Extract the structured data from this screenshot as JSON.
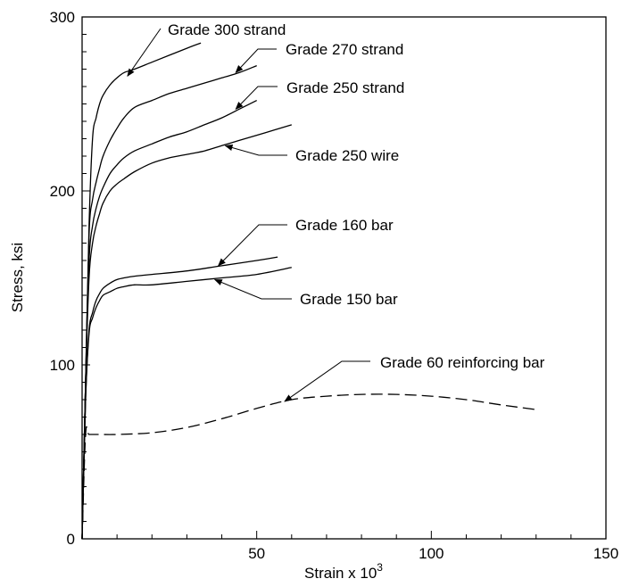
{
  "chart_data": {
    "type": "line",
    "xlabel": "Strain x 10",
    "xlabel_sup": "3",
    "ylabel": "Stress, ksi",
    "xlim": [
      0,
      150
    ],
    "ylim": [
      0,
      300
    ],
    "x_ticks": [
      50,
      100,
      150
    ],
    "y_ticks": [
      0,
      100,
      200,
      300
    ],
    "x_tick_labels": [
      "50",
      "100",
      "150"
    ],
    "y_tick_labels": [
      "0",
      "100",
      "200",
      "300"
    ],
    "grid": false,
    "series": [
      {
        "name": "Grade 300 strand",
        "style": "solid",
        "x": [
          0,
          1,
          2,
          3,
          4,
          5,
          6,
          8,
          10,
          12,
          15,
          20,
          25,
          30,
          34
        ],
        "y": [
          0,
          90,
          180,
          230,
          242,
          250,
          255,
          261,
          265,
          268,
          270,
          274,
          278,
          282,
          285
        ],
        "annotation_point": [
          13,
          266
        ]
      },
      {
        "name": "Grade 270 strand",
        "style": "solid",
        "x": [
          0,
          1,
          2,
          3,
          4,
          5,
          6,
          8,
          10,
          12,
          15,
          20,
          25,
          30,
          35,
          40,
          45,
          50
        ],
        "y": [
          0,
          90,
          175,
          195,
          205,
          213,
          220,
          229,
          236,
          242,
          248,
          252,
          256,
          259,
          262,
          265,
          268,
          272
        ],
        "annotation_point": [
          44,
          268
        ]
      },
      {
        "name": "Grade 250 strand",
        "style": "solid",
        "x": [
          0,
          1,
          2,
          3,
          4,
          5,
          6,
          8,
          10,
          12,
          15,
          20,
          25,
          30,
          35,
          40,
          45,
          50
        ],
        "y": [
          0,
          90,
          160,
          180,
          190,
          197,
          202,
          210,
          215,
          219,
          223,
          227,
          231,
          234,
          238,
          242,
          247,
          252
        ],
        "annotation_point": [
          44,
          247
        ]
      },
      {
        "name": "Grade 250 wire",
        "style": "solid",
        "x": [
          0,
          1,
          2,
          3,
          4,
          5,
          6,
          8,
          10,
          12,
          15,
          20,
          25,
          30,
          35,
          40,
          45,
          50,
          55,
          60
        ],
        "y": [
          0,
          90,
          150,
          170,
          180,
          187,
          193,
          200,
          204,
          207,
          211,
          216,
          219,
          221,
          223,
          226,
          229,
          232,
          235,
          238
        ],
        "annotation_point": [
          41,
          226
        ]
      },
      {
        "name": "Grade 160 bar",
        "style": "solid",
        "x": [
          0,
          1,
          2,
          3,
          4,
          5,
          6,
          8,
          10,
          12,
          15,
          20,
          30,
          40,
          50,
          56
        ],
        "y": [
          0,
          80,
          120,
          130,
          137,
          141,
          144,
          147,
          149,
          150,
          151,
          152,
          154,
          157,
          160,
          162
        ],
        "annotation_point": [
          39,
          157
        ]
      },
      {
        "name": "Grade 150 bar",
        "style": "solid",
        "x": [
          0,
          1,
          2,
          3,
          4,
          5,
          6,
          8,
          10,
          12,
          15,
          20,
          30,
          40,
          50,
          60
        ],
        "y": [
          0,
          80,
          118,
          127,
          133,
          137,
          140,
          142,
          144,
          145,
          146,
          146,
          148,
          150,
          152,
          156
        ],
        "annotation_point": [
          38,
          149
        ]
      },
      {
        "name": "Grade 60 reinforcing bar",
        "style": "dashed",
        "x": [
          0,
          1,
          2,
          5,
          10,
          20,
          30,
          40,
          50,
          60,
          70,
          80,
          90,
          100,
          110,
          120,
          131
        ],
        "y": [
          0,
          60,
          60,
          60,
          60,
          61,
          64,
          69,
          75,
          80,
          82,
          83,
          83,
          82,
          80,
          77,
          74
        ],
        "annotation_point": [
          58,
          79
        ]
      }
    ],
    "annotations": [
      {
        "text": "Grade 300 strand",
        "series_index": 0
      },
      {
        "text": "Grade 270 strand",
        "series_index": 1
      },
      {
        "text": "Grade 250 strand",
        "series_index": 2
      },
      {
        "text": "Grade 250 wire",
        "series_index": 3
      },
      {
        "text": "Grade 160 bar",
        "series_index": 4
      },
      {
        "text": "Grade 150 bar",
        "series_index": 5
      },
      {
        "text": "Grade 60 reinforcing bar",
        "series_index": 6
      }
    ]
  }
}
